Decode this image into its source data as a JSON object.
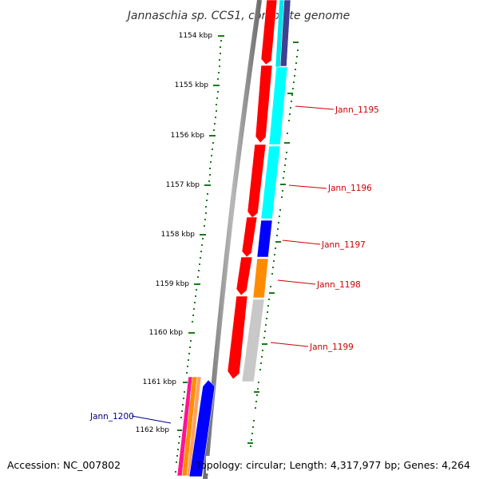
{
  "title": "Jannaschia sp. CCS1, complete genome",
  "footer": {
    "accession": "Accession: NC_007802",
    "summary": "Topology: circular; Length: 4,317,977 bp; Genes: 4,264"
  },
  "kbp_labels": [
    "1154 kbp",
    "1155 kbp",
    "1156 kbp",
    "1157 kbp",
    "1158 kbp",
    "1159 kbp",
    "1160 kbp",
    "1161 kbp",
    "1162 kbp"
  ],
  "gene_labels": {
    "jann_1195": "Jann_1195",
    "jann_1196": "Jann_1196",
    "jann_1197": "Jann_1197",
    "jann_1198": "Jann_1198",
    "jann_1199": "Jann_1199",
    "jann_1200": "Jann_1200"
  },
  "colors": {
    "forward_strand_genes": "#ff0000",
    "reverse_label": "#000080",
    "forward_label": "#cc0000",
    "cyan_feature": "#00ffff",
    "blue_feature": "#0000ff",
    "orange_feature": "#ff8c00",
    "grey_feature": "#c0c0c0",
    "tick_green": "#006400",
    "backbone": "#808080"
  }
}
